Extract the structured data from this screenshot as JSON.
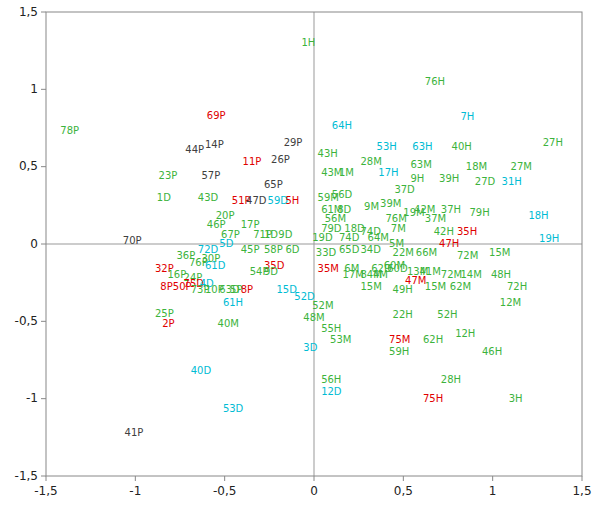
{
  "chart_data": {
    "type": "scatter",
    "x": [
      -0.07,
      0.62,
      0.82,
      0.1,
      1.28,
      0.35,
      0.55,
      0.77,
      0.02,
      0.26,
      0.54,
      0.85,
      1.1,
      0.04,
      0.14,
      0.36,
      0.54,
      0.7,
      0.9,
      1.05,
      0.45,
      -1.42,
      -0.6,
      -0.61,
      -0.72,
      -0.17,
      -0.24,
      -0.4,
      -0.63,
      -0.87,
      -0.28,
      -0.88,
      -0.65,
      -0.46,
      -0.38,
      -0.26,
      -0.16,
      0.02,
      0.1,
      0.04,
      0.13,
      0.28,
      0.37,
      0.5,
      0.56,
      0.71,
      0.87,
      1.2,
      -0.55,
      0.06,
      0.4,
      0.62,
      -0.6,
      -0.41,
      0.04,
      0.17,
      0.26,
      0.43,
      0.67,
      0.8,
      -0.52,
      -0.34,
      -0.28,
      -0.2,
      -0.01,
      0.14,
      0.3,
      0.42,
      1.26,
      0.7,
      -1.07,
      -0.53,
      -0.65,
      -0.77,
      -0.63,
      -0.41,
      -0.28,
      -0.16,
      0.01,
      0.14,
      0.26,
      0.44,
      0.57,
      0.8,
      0.98,
      -0.89,
      -0.7,
      -0.61,
      -0.28,
      0.02,
      0.17,
      0.32,
      0.41,
      0.52,
      0.59,
      -0.82,
      -0.73,
      -0.73,
      -0.64,
      0.51,
      0.82,
      0.99,
      -0.86,
      -0.79,
      -0.69,
      -0.61,
      -0.53,
      -0.47,
      -0.41,
      -0.21,
      -0.11,
      0.26,
      0.44,
      0.62,
      0.76,
      1.08,
      -0.01,
      -0.06,
      1.04,
      -0.51,
      0.44,
      0.69,
      -0.89,
      -0.85,
      -0.54,
      0.04,
      0.09,
      0.42,
      0.61,
      0.79,
      0.42,
      0.94,
      -0.06,
      0.04,
      0.71,
      -0.69,
      0.04,
      0.61,
      1.09,
      -0.51,
      -1.06,
      0.39,
      -0.36,
      -0.28,
      0.16,
      0.26,
      0.33,
      0.71
    ],
    "values": [
      1.3,
      1.05,
      0.82,
      0.76,
      0.65,
      0.63,
      0.63,
      0.63,
      0.58,
      0.53,
      0.51,
      0.5,
      0.5,
      0.46,
      0.46,
      0.46,
      0.42,
      0.42,
      0.4,
      0.4,
      0.35,
      0.73,
      0.83,
      0.64,
      0.61,
      0.65,
      0.54,
      0.53,
      0.44,
      0.44,
      0.38,
      0.3,
      0.3,
      0.28,
      0.28,
      0.28,
      0.28,
      0.3,
      0.32,
      0.22,
      0.22,
      0.24,
      0.26,
      0.2,
      0.22,
      0.22,
      0.2,
      0.18,
      0.18,
      0.16,
      0.16,
      0.16,
      0.12,
      0.12,
      0.1,
      0.1,
      0.08,
      0.1,
      0.08,
      0.08,
      0.06,
      0.06,
      0.06,
      0.06,
      0.04,
      0.04,
      0.04,
      0.0,
      0.03,
      0.0,
      0.02,
      0.0,
      -0.04,
      -0.08,
      -0.1,
      -0.04,
      -0.04,
      -0.04,
      -0.06,
      -0.04,
      -0.04,
      -0.06,
      -0.06,
      -0.08,
      -0.06,
      -0.16,
      -0.12,
      -0.14,
      -0.14,
      -0.16,
      -0.16,
      -0.16,
      -0.16,
      -0.18,
      -0.18,
      -0.2,
      -0.22,
      -0.26,
      -0.26,
      -0.24,
      -0.2,
      -0.2,
      -0.28,
      -0.28,
      -0.3,
      -0.3,
      -0.3,
      -0.3,
      -0.3,
      -0.3,
      -0.34,
      -0.28,
      -0.3,
      -0.28,
      -0.28,
      -0.28,
      -0.4,
      -0.48,
      -0.38,
      -0.38,
      -0.46,
      -0.46,
      -0.45,
      -0.52,
      -0.52,
      -0.55,
      -0.62,
      -0.62,
      -0.62,
      -0.58,
      -0.7,
      -0.7,
      -0.67,
      -0.88,
      -0.88,
      -0.82,
      -0.96,
      -1.0,
      -1.0,
      -1.07,
      -1.22,
      -0.14,
      -0.18,
      -0.18,
      -0.2,
      -0.2,
      -0.2,
      -0.2
    ],
    "labels": [
      "1H",
      "76H",
      "7H",
      "64H",
      "27H",
      "53H",
      "63H",
      "40H",
      "43H",
      "28M",
      "63M",
      "18M",
      "27M",
      "43M",
      "1M",
      "17H",
      "9H",
      "39H",
      "27D",
      "31H",
      "37D",
      "78P",
      "69P",
      "14P",
      "44P",
      "29P",
      "26P",
      "11P",
      "57P",
      "23P",
      "65P",
      "1D",
      "43D",
      "51P",
      "47D",
      "59D",
      "5H",
      "59M",
      "56D",
      "61M",
      "8D",
      "9M",
      "39M",
      "19M",
      "42M",
      "37H",
      "79H",
      "18H",
      "20P",
      "56M",
      "76M",
      "37M",
      "46P",
      "17P",
      "79D",
      "18D",
      "74D",
      "7M",
      "42H",
      "35H",
      "67P",
      "71P",
      "1D",
      "9D",
      "19D",
      "74D",
      "64M",
      "5M",
      "19H",
      "47H",
      "70P",
      "5D",
      "72D",
      "36P",
      "30P",
      "45P",
      "58P",
      "6D",
      "33D",
      "65D",
      "34D",
      "22M",
      "66M",
      "72M",
      "15M",
      "32P",
      "76P",
      "61D",
      "35D",
      "35M",
      "6M",
      "62D",
      "60D",
      "13M",
      "41M",
      "16P",
      "24P",
      "75D",
      "4D",
      "47M",
      "14M",
      "48H",
      "8P",
      "50P",
      "73P",
      "10P",
      "63D",
      "5P",
      "8P",
      "15D",
      "52D",
      "15M",
      "49H",
      "15M",
      "62M",
      "72H",
      "52M",
      "48M",
      "12M",
      "61H",
      "22H",
      "52H",
      "25P",
      "2P",
      "40M",
      "55H",
      "53M",
      "75M",
      "62H",
      "12H",
      "59H",
      "46H",
      "3D",
      "56H",
      "28H",
      "40D",
      "12D",
      "75H",
      "3H",
      "53D",
      "41P",
      "60M",
      "54P",
      "9D",
      "17M",
      "84M",
      "4M",
      "72M"
    ],
    "colors": [
      "#3cb33c",
      "#3cb33c",
      "#00bcd4",
      "#00bcd4",
      "#3cb33c",
      "#00bcd4",
      "#00bcd4",
      "#3cb33c",
      "#3cb33c",
      "#3cb33c",
      "#3cb33c",
      "#3cb33c",
      "#3cb33c",
      "#3cb33c",
      "#3cb33c",
      "#00bcd4",
      "#3cb33c",
      "#3cb33c",
      "#3cb33c",
      "#00bcd4",
      "#3cb33c",
      "#3cb33c",
      "#e00000",
      "#404040",
      "#404040",
      "#404040",
      "#404040",
      "#e00000",
      "#404040",
      "#3cb33c",
      "#404040",
      "#3cb33c",
      "#3cb33c",
      "#e00000",
      "#404040",
      "#00bcd4",
      "#e00000",
      "#3cb33c",
      "#3cb33c",
      "#3cb33c",
      "#3cb33c",
      "#3cb33c",
      "#3cb33c",
      "#3cb33c",
      "#3cb33c",
      "#3cb33c",
      "#3cb33c",
      "#00bcd4",
      "#3cb33c",
      "#3cb33c",
      "#3cb33c",
      "#3cb33c",
      "#3cb33c",
      "#3cb33c",
      "#3cb33c",
      "#3cb33c",
      "#3cb33c",
      "#3cb33c",
      "#3cb33c",
      "#e00000",
      "#3cb33c",
      "#3cb33c",
      "#3cb33c",
      "#3cb33c",
      "#3cb33c",
      "#3cb33c",
      "#3cb33c",
      "#3cb33c",
      "#00bcd4",
      "#e00000",
      "#404040",
      "#00bcd4",
      "#00bcd4",
      "#3cb33c",
      "#3cb33c",
      "#3cb33c",
      "#3cb33c",
      "#3cb33c",
      "#3cb33c",
      "#3cb33c",
      "#3cb33c",
      "#3cb33c",
      "#3cb33c",
      "#3cb33c",
      "#3cb33c",
      "#e00000",
      "#3cb33c",
      "#00bcd4",
      "#e00000",
      "#e00000",
      "#3cb33c",
      "#3cb33c",
      "#3cb33c",
      "#3cb33c",
      "#3cb33c",
      "#3cb33c",
      "#3cb33c",
      "#e00000",
      "#00bcd4",
      "#e00000",
      "#3cb33c",
      "#3cb33c",
      "#e00000",
      "#e00000",
      "#3cb33c",
      "#3cb33c",
      "#3cb33c",
      "#3cb33c",
      "#e00000",
      "#00bcd4",
      "#00bcd4",
      "#3cb33c",
      "#3cb33c",
      "#3cb33c",
      "#3cb33c",
      "#3cb33c",
      "#3cb33c",
      "#3cb33c",
      "#3cb33c",
      "#00bcd4",
      "#3cb33c",
      "#3cb33c",
      "#3cb33c",
      "#e00000",
      "#3cb33c",
      "#3cb33c",
      "#3cb33c",
      "#e00000",
      "#3cb33c",
      "#3cb33c",
      "#3cb33c",
      "#3cb33c",
      "#00bcd4",
      "#3cb33c",
      "#3cb33c",
      "#00bcd4",
      "#00bcd4",
      "#e00000",
      "#3cb33c",
      "#00bcd4",
      "#404040",
      "#3cb33c",
      "#3cb33c",
      "#3cb33c",
      "#3cb33c",
      "#3cb33c",
      "#3cb33c",
      "#3cb33c"
    ],
    "xlim": [
      -1.5,
      1.5
    ],
    "ylim": [
      -1.5,
      1.5
    ],
    "xticks": [
      {
        "value": -1.5,
        "label": "-1,5"
      },
      -1,
      {
        "value": -0.5,
        "label": "-0,5"
      },
      0,
      {
        "value": 0.5,
        "label": "0,5"
      },
      1,
      {
        "value": 1.5,
        "label": "1,5"
      }
    ],
    "yticks": [
      {
        "value": -1.5,
        "label": "-1,5"
      },
      -1,
      {
        "value": -0.5,
        "label": "-0,5"
      },
      0,
      {
        "value": 0.5,
        "label": "0,5"
      },
      1,
      {
        "value": 1.5,
        "label": "1,5"
      }
    ],
    "reference_lines": [
      {
        "axis": "y",
        "value": 0
      },
      {
        "axis": "x",
        "value": 0
      }
    ],
    "grid": false
  }
}
